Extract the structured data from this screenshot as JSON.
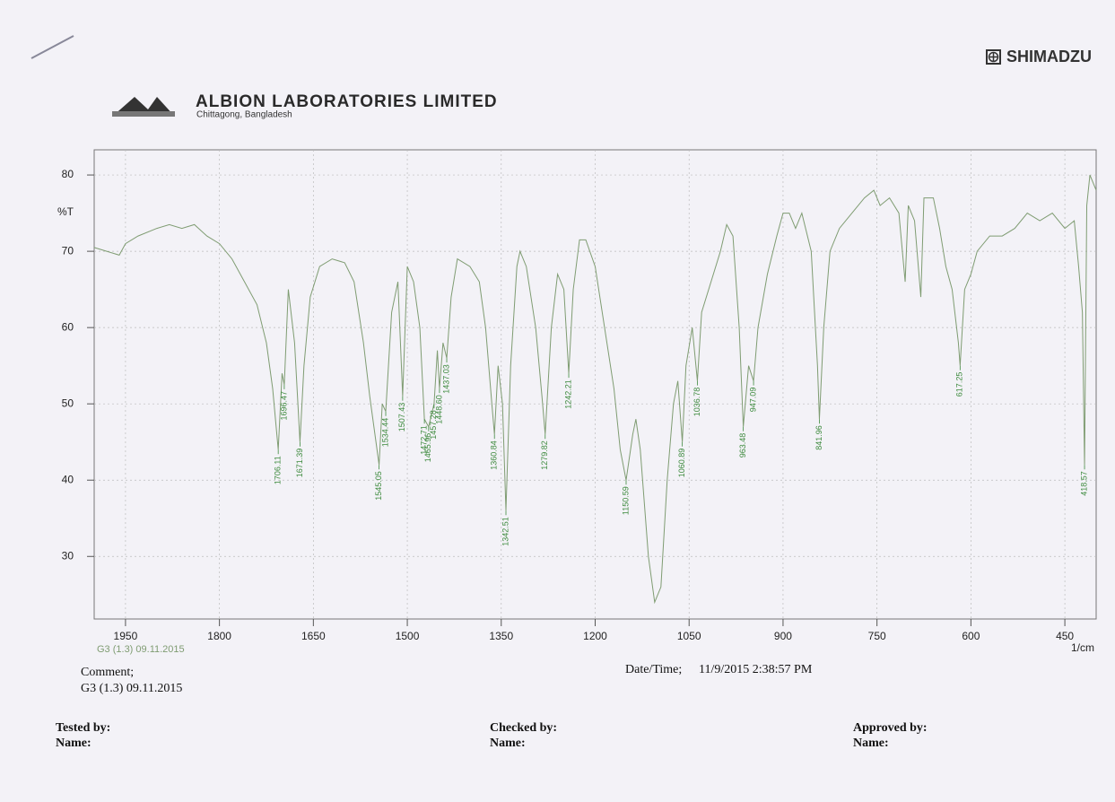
{
  "header": {
    "brand": "SHIMADZU",
    "company": "ALBION LABORATORIES LIMITED",
    "location": "Chittagong, Bangladesh"
  },
  "chart_data": {
    "type": "line",
    "y_label": "%T",
    "x_label": "1/cm",
    "xlim": [
      2000,
      400
    ],
    "ylim": [
      21.8,
      83.3
    ],
    "xticks": [
      1950,
      1800,
      1650,
      1500,
      1350,
      1200,
      1050,
      900,
      750,
      600,
      450
    ],
    "yticks": [
      30,
      40,
      50,
      60,
      70,
      80
    ],
    "grid": true,
    "x": [
      2000,
      1980,
      1960,
      1950,
      1930,
      1900,
      1880,
      1860,
      1840,
      1820,
      1800,
      1780,
      1760,
      1740,
      1725,
      1715,
      1706.11,
      1700,
      1696.47,
      1690,
      1680,
      1671.39,
      1665,
      1655,
      1640,
      1620,
      1600,
      1585,
      1570,
      1560,
      1545.05,
      1540,
      1534.44,
      1525,
      1515,
      1507.43,
      1500,
      1490,
      1480,
      1472.71,
      1465.96,
      1457.28,
      1452,
      1448.6,
      1443,
      1437.03,
      1430,
      1420,
      1400,
      1385,
      1375,
      1365,
      1360.84,
      1355,
      1348,
      1342.51,
      1335,
      1325,
      1320,
      1310,
      1295,
      1285,
      1279.82,
      1270,
      1260,
      1250,
      1242.21,
      1235,
      1225,
      1215,
      1200,
      1185,
      1170,
      1160,
      1150.59,
      1140,
      1135,
      1128,
      1115,
      1105,
      1095,
      1085,
      1075,
      1068,
      1060.89,
      1055,
      1045,
      1036.78,
      1030,
      1015,
      1000,
      990,
      980,
      970,
      963.48,
      955,
      947.09,
      940,
      925,
      910,
      900,
      890,
      880,
      870,
      855,
      845,
      841.96,
      835,
      825,
      810,
      790,
      770,
      755,
      745,
      730,
      715,
      705,
      700,
      690,
      680,
      675,
      660,
      650,
      640,
      630,
      620,
      617.25,
      610,
      600,
      590,
      570,
      550,
      530,
      510,
      490,
      470,
      450,
      435,
      428,
      422,
      418.57,
      415,
      410,
      400
    ],
    "series": [
      {
        "name": "G3 (1.3) 09.11.2015",
        "color": "#7f9c72",
        "values": [
          70.5,
          70,
          69.5,
          71,
          72,
          73,
          73.5,
          73,
          73.5,
          72,
          71,
          69,
          66,
          63,
          58,
          52,
          44,
          54,
          52.5,
          65,
          58,
          45,
          55,
          64,
          68,
          69,
          68.5,
          66,
          58,
          51,
          42,
          50,
          49,
          62,
          66,
          51,
          68,
          66,
          60,
          48,
          47,
          50,
          57,
          52,
          58,
          56,
          64,
          69,
          68,
          66,
          60,
          50,
          46,
          55,
          50,
          36,
          55,
          68,
          70,
          68,
          60,
          51,
          46,
          60,
          67,
          65,
          54,
          65,
          71.5,
          71.5,
          68,
          60,
          52,
          44,
          40,
          46,
          48,
          44,
          30,
          24,
          26,
          40,
          50,
          53,
          45,
          55,
          60,
          53,
          62,
          66,
          70,
          73.5,
          72,
          60,
          47,
          55,
          53,
          60,
          67,
          72,
          75,
          75,
          73,
          75,
          70,
          55,
          48,
          60,
          70,
          73,
          75,
          77,
          78,
          76,
          77,
          75,
          66,
          76,
          74,
          64,
          77,
          77,
          73,
          68,
          65,
          58,
          55,
          65,
          67,
          70,
          72,
          72,
          73,
          75,
          74,
          75,
          73,
          74,
          68,
          62,
          42,
          76,
          80,
          78
        ]
      }
    ],
    "peaks": {
      "x": [
        1706.11,
        1696.47,
        1671.39,
        1545.05,
        1534.44,
        1507.43,
        1472.71,
        1465.96,
        1457.28,
        1448.6,
        1437.03,
        1360.84,
        1342.51,
        1279.82,
        1242.21,
        1150.59,
        1060.89,
        1036.78,
        963.48,
        947.09,
        841.96,
        617.25,
        418.57
      ],
      "y": [
        44,
        52.5,
        45,
        42,
        49,
        51,
        48,
        47,
        50,
        52,
        56,
        46,
        36,
        46,
        54,
        40,
        45,
        53,
        47,
        53,
        48,
        55,
        42
      ],
      "value_labels": [
        "1706.11",
        "1696.47",
        "1671.39",
        "1545.05",
        "1534.44",
        "1507.43",
        "1472.71",
        "1465.96",
        "1457.28",
        "1448.60",
        "1437.03",
        "1360.84",
        "1342.51",
        "1279.82",
        "1242.21",
        "1150.59",
        "1060.89",
        "1036.78",
        "963.48",
        "947.09",
        "841.96",
        "617.25",
        "418.57"
      ]
    }
  },
  "footer": {
    "comment_label": "Comment;",
    "comment": "G3 (1.3) 09.11.2015",
    "datetime_label": "Date/Time;",
    "datetime": "11/9/2015 2:38:57 PM",
    "tested_by": "Tested by:",
    "tested_name": "Name:",
    "checked_by": "Checked by:",
    "checked_name": "Name:",
    "approved_by": "Approved by:",
    "approved_name": "Name:"
  }
}
